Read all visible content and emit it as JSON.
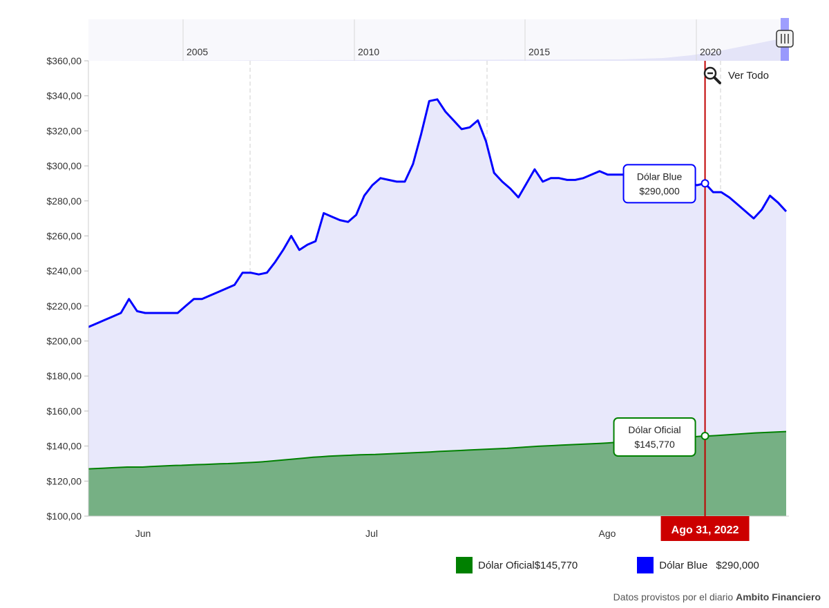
{
  "chart_data": {
    "type": "area",
    "ylim": [
      100,
      360
    ],
    "y_ticks": [
      "$100,00",
      "$120,00",
      "$140,00",
      "$160,00",
      "$180,00",
      "$200,00",
      "$220,00",
      "$240,00",
      "$260,00",
      "$280,00",
      "$300,00",
      "$320,00",
      "$340,00",
      "$360,00"
    ],
    "x_tick_labels": [
      "Jun",
      "Jul",
      "Ago"
    ],
    "series": [
      {
        "name": "Dólar Blue",
        "color": "#0000ff",
        "fill": "#e8e8fb",
        "values": [
          208,
          210,
          212,
          214,
          216,
          224,
          217,
          216,
          216,
          216,
          216,
          216,
          220,
          224,
          224,
          226,
          228,
          230,
          232,
          239,
          239,
          238,
          239,
          245,
          252,
          260,
          252,
          255,
          257,
          273,
          271,
          269,
          268,
          272,
          283,
          289,
          293,
          292,
          291,
          291,
          301,
          318,
          337,
          338,
          331,
          326,
          321,
          322,
          326,
          314,
          296,
          291,
          287,
          282,
          290,
          298,
          291,
          293,
          293,
          292,
          292,
          293,
          295,
          297,
          295,
          295,
          295,
          295,
          291,
          292,
          293,
          295,
          294,
          291,
          290,
          289,
          290,
          285,
          285,
          282,
          278,
          274,
          270,
          275,
          283,
          279,
          274
        ]
      },
      {
        "name": "Dólar Oficial",
        "color": "#008000",
        "fill": "#76b084",
        "values": [
          127,
          127.2,
          127.4,
          127.6,
          127.8,
          128,
          128,
          128,
          128.3,
          128.5,
          128.7,
          128.9,
          129,
          129.2,
          129.4,
          129.5,
          129.7,
          129.9,
          130,
          130.2,
          130.4,
          130.6,
          130.9,
          131.2,
          131.6,
          132,
          132.4,
          132.8,
          133.2,
          133.6,
          133.9,
          134.2,
          134.4,
          134.6,
          134.8,
          135,
          135.1,
          135.2,
          135.4,
          135.6,
          135.8,
          136,
          136.2,
          136.4,
          136.6,
          136.9,
          137.1,
          137.3,
          137.5,
          137.7,
          137.9,
          138.1,
          138.3,
          138.5,
          138.7,
          139,
          139.3,
          139.6,
          139.9,
          140.1,
          140.3,
          140.5,
          140.7,
          140.9,
          141.1,
          141.3,
          141.5,
          141.8,
          142.1,
          142.4,
          142.7,
          143,
          143.3,
          143.6,
          143.9,
          144.2,
          144.6,
          145,
          145.3,
          145.6,
          145.77,
          146,
          146.3,
          146.6,
          146.9,
          147.2,
          147.5,
          147.7,
          147.9,
          148.1,
          148.3
        ]
      }
    ],
    "cursor": {
      "label": "Ago 31, 2022",
      "index": 76
    },
    "tooltips": {
      "blue": {
        "title": "Dólar Blue",
        "value": "$290,000"
      },
      "oficial": {
        "title": "Dólar Oficial",
        "value": "$145,770"
      }
    }
  },
  "navigator": {
    "labels": [
      "2005",
      "2010",
      "2015",
      "2020"
    ]
  },
  "reset_zoom": {
    "label": "Ver Todo"
  },
  "legend": [
    {
      "name": "Dólar Oficial",
      "value": "$145,770",
      "color": "#008000"
    },
    {
      "name": "Dólar Blue",
      "value": "$290,000",
      "color": "#0000ff"
    }
  ],
  "credit": {
    "prefix": "Datos provistos por el diario",
    "source": "Ambito Financiero"
  }
}
